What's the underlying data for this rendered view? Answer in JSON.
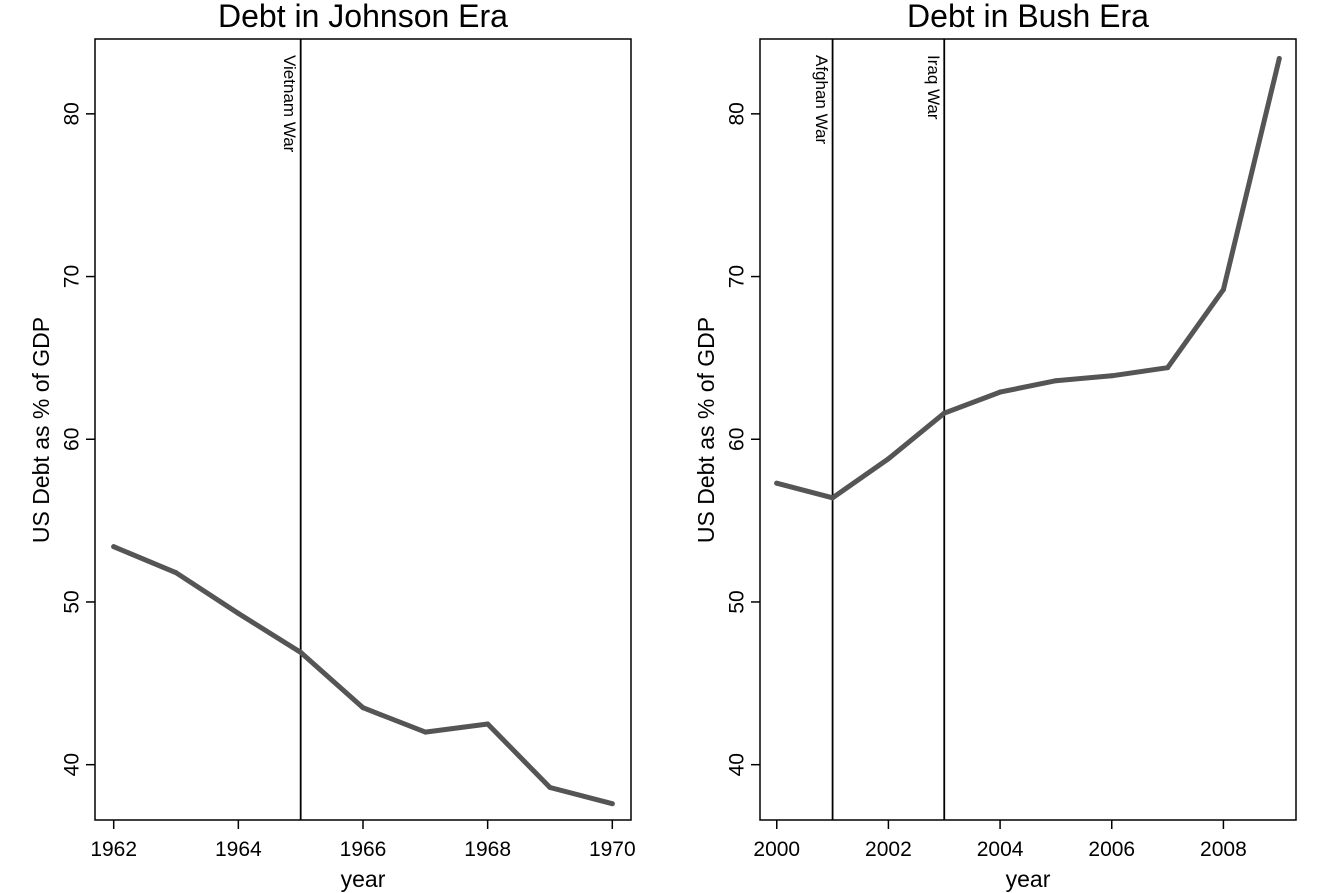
{
  "chart_data": [
    {
      "type": "line",
      "title": "Debt in Johnson Era",
      "xlabel": "year",
      "ylabel": "US Debt as % of GDP",
      "xlim": [
        1961.7,
        1970.3
      ],
      "ylim": [
        36.6,
        84.6
      ],
      "xticks": [
        1962,
        1964,
        1966,
        1968,
        1970
      ],
      "yticks": [
        40,
        50,
        60,
        70,
        80
      ],
      "grid": false,
      "series": [
        {
          "color": "#555555",
          "x": [
            1962,
            1963,
            1964,
            1965,
            1966,
            1967,
            1968,
            1969,
            1970
          ],
          "y": [
            53.4,
            51.8,
            49.3,
            46.9,
            43.5,
            42.0,
            42.5,
            38.6,
            37.6
          ]
        }
      ],
      "events": [
        {
          "x": 1965,
          "label": "Vietnam War"
        }
      ]
    },
    {
      "type": "line",
      "title": "Debt in Bush Era",
      "xlabel": "year",
      "ylabel": "US Debt as % of GDP",
      "xlim": [
        1999.7,
        2009.3
      ],
      "ylim": [
        36.6,
        84.6
      ],
      "xticks": [
        2000,
        2002,
        2004,
        2006,
        2008
      ],
      "yticks": [
        40,
        50,
        60,
        70,
        80
      ],
      "grid": false,
      "series": [
        {
          "color": "#555555",
          "x": [
            2000,
            2001,
            2002,
            2003,
            2004,
            2005,
            2006,
            2007,
            2008,
            2009
          ],
          "y": [
            57.3,
            56.4,
            58.8,
            61.6,
            62.9,
            63.6,
            63.9,
            64.4,
            69.2,
            83.4
          ]
        }
      ],
      "events": [
        {
          "x": 2001,
          "label": "Afghan War"
        },
        {
          "x": 2003,
          "label": "Iraq War"
        }
      ]
    }
  ]
}
